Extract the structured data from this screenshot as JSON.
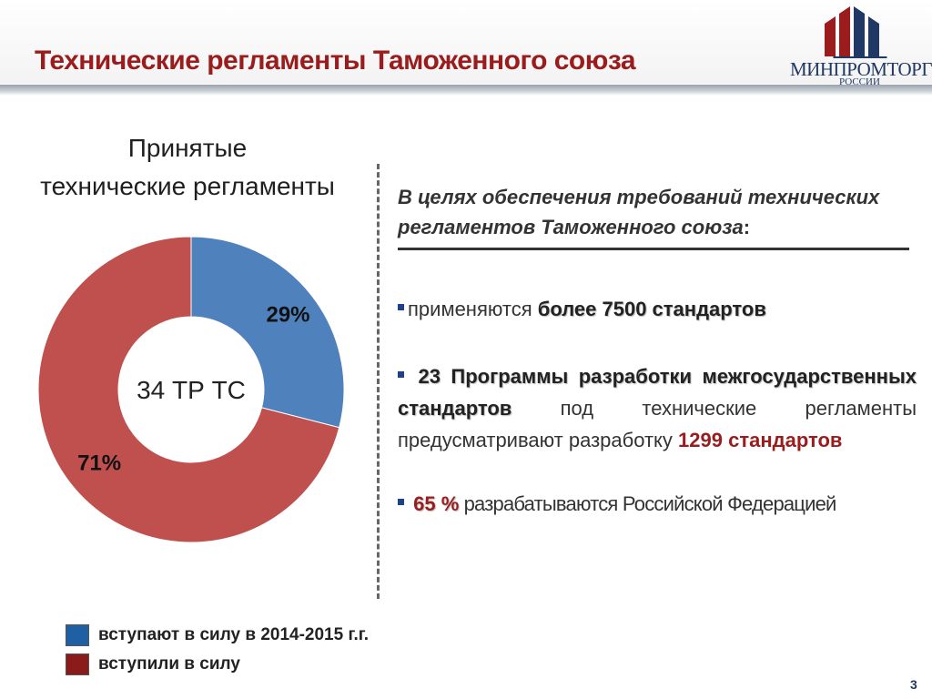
{
  "header": {
    "title": "Технические регламенты Таможенного союза"
  },
  "logo": {
    "line1_left": "МИН",
    "line1_mid": "ПРОМ",
    "line1_right": "ТОРГ",
    "line2": "РОССИИ"
  },
  "chart_title": {
    "line1": "Принятые",
    "line2": "технические регламенты"
  },
  "chart_data": {
    "type": "pie",
    "donut": true,
    "center_label": "34 ТР ТС",
    "slices": [
      {
        "label": "вступают в силу в 2014-2015 г.г.",
        "value": 29,
        "display": "29%",
        "color": "#4f81bd"
      },
      {
        "label": "вступили в силу",
        "value": 71,
        "display": "71%",
        "color": "#c0504d"
      }
    ],
    "legend_placement": "bottom-left"
  },
  "right_panel": {
    "intro": "В целях обеспечения требований технических регламентов Таможенного союза",
    "intro_colon": ":",
    "bullet1": {
      "text": "применяются ",
      "strong": "более 7500 стандартов"
    },
    "bullet2": {
      "strong_a": "23 Программы разработки межгосударственных",
      "strong_b": "стандартов",
      "text": " под технические регламенты предусматривают разработку ",
      "red": "1299 стандартов"
    },
    "bullet3": {
      "red": "65 %",
      "text": " разрабатываются Российской Федерацией"
    }
  },
  "legend": [
    {
      "label": "вступают в силу в 2014-2015 г.г.",
      "color": "#1f5fa3"
    },
    {
      "label": "вступили в силу",
      "color": "#8b1a1a"
    }
  ],
  "page_number": "3"
}
